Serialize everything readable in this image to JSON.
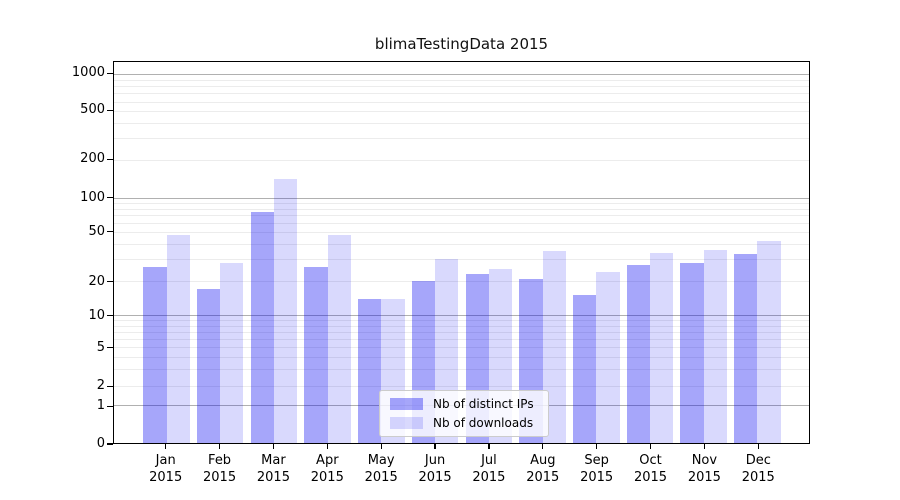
{
  "chart_data": {
    "type": "bar",
    "title": "blimaTestingData 2015",
    "categories": [
      "Jan",
      "Feb",
      "Mar",
      "Apr",
      "May",
      "Jun",
      "Jul",
      "Aug",
      "Sep",
      "Oct",
      "Nov",
      "Dec"
    ],
    "x_tick_year": "2015",
    "series": [
      {
        "name": "Nb of distinct IPs",
        "color": "rgba(0,0,240,0.35)",
        "values": [
          26,
          17,
          75,
          26,
          14,
          20,
          23,
          21,
          15,
          27,
          28,
          33
        ]
      },
      {
        "name": "Nb of downloads",
        "color": "rgba(0,0,240,0.15)",
        "values": [
          47,
          28,
          142,
          47,
          14,
          30,
          25,
          35,
          24,
          34,
          36,
          42
        ]
      }
    ],
    "xlabel": "",
    "ylabel": "",
    "yscale": "log-like (compressed below 10, linear 0-1)",
    "y_ticks": [
      1000,
      500,
      200,
      100,
      50,
      20,
      10,
      5,
      2,
      1,
      0
    ],
    "ylim": [
      0,
      1400
    ],
    "grid": "horizontal only: gray majors at 1,10,100,1000; faint minors at 2-9 per decade",
    "legend_position": "lower center"
  }
}
